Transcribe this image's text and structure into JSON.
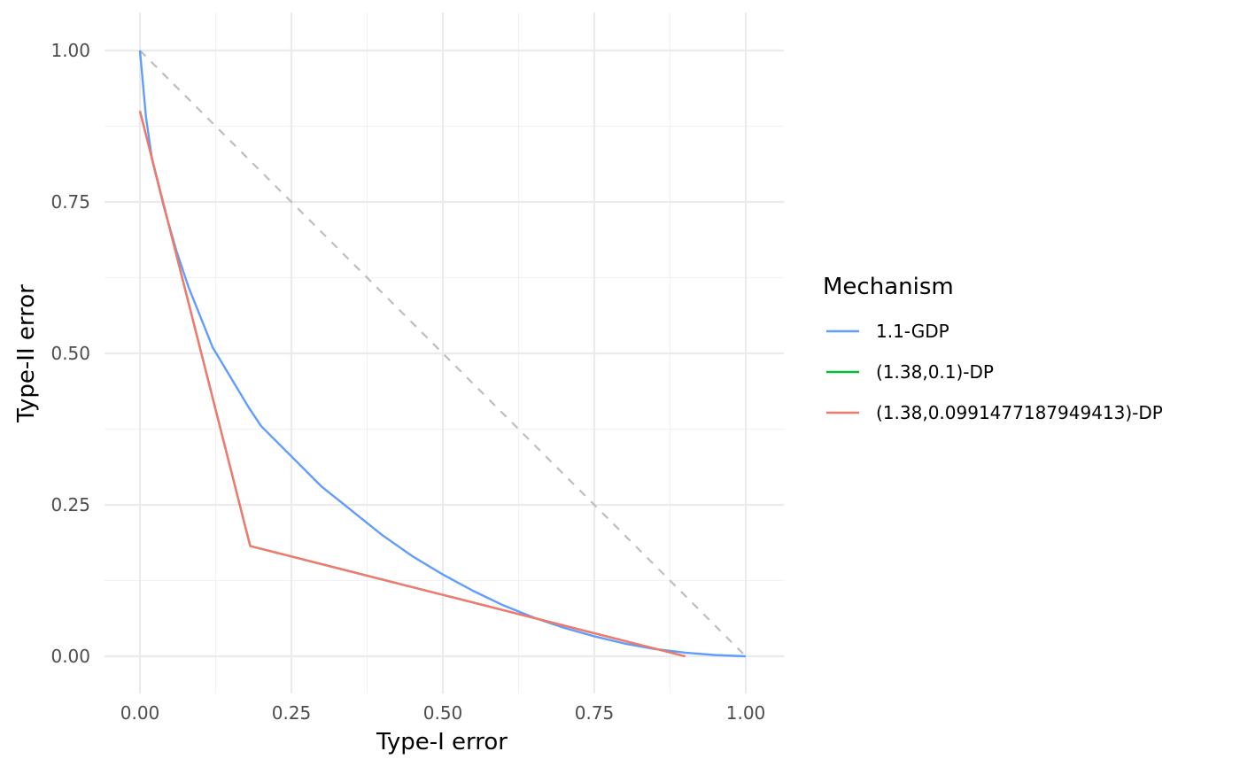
{
  "chart_data": {
    "type": "line",
    "title": "",
    "xlabel": "Type-I error",
    "ylabel": "Type-II error",
    "xlim": [
      0,
      1
    ],
    "ylim": [
      0,
      1
    ],
    "x_ticks": [
      "0.00",
      "0.25",
      "0.50",
      "0.75",
      "1.00"
    ],
    "y_ticks": [
      "0.00",
      "0.25",
      "0.50",
      "0.75",
      "1.00"
    ],
    "grid": true,
    "legend": {
      "title": "Mechanism",
      "position": "right"
    },
    "reference_line": {
      "x": [
        0,
        1
      ],
      "y": [
        1,
        0
      ],
      "style": "dashed",
      "color": "#bebebe"
    },
    "series": [
      {
        "name": "1.1-GDP",
        "color": "#619CFF",
        "x": [
          0,
          0.01,
          0.02,
          0.04,
          0.06,
          0.08,
          0.1,
          0.12,
          0.15,
          0.18,
          0.2,
          0.25,
          0.3,
          0.35,
          0.4,
          0.45,
          0.5,
          0.55,
          0.6,
          0.65,
          0.7,
          0.75,
          0.8,
          0.85,
          0.9,
          0.95,
          1.0
        ],
        "y": [
          1,
          0.89,
          0.82,
          0.74,
          0.67,
          0.61,
          0.56,
          0.51,
          0.46,
          0.41,
          0.38,
          0.33,
          0.28,
          0.24,
          0.2,
          0.165,
          0.135,
          0.108,
          0.084,
          0.064,
          0.047,
          0.033,
          0.021,
          0.012,
          0.006,
          0.002,
          0.0
        ]
      },
      {
        "name": "(1.38,0.1)-DP",
        "color": "#00BA38",
        "x": [
          0,
          0.182,
          0.9
        ],
        "y": [
          0.9,
          0.182,
          0
        ],
        "hidden_under": "(1.38,0.0991477187949413)-DP"
      },
      {
        "name": "(1.38,0.0991477187949413)-DP",
        "color": "#F8766D",
        "x": [
          0,
          0.182,
          0.9
        ],
        "y": [
          0.9,
          0.182,
          0
        ]
      }
    ]
  }
}
